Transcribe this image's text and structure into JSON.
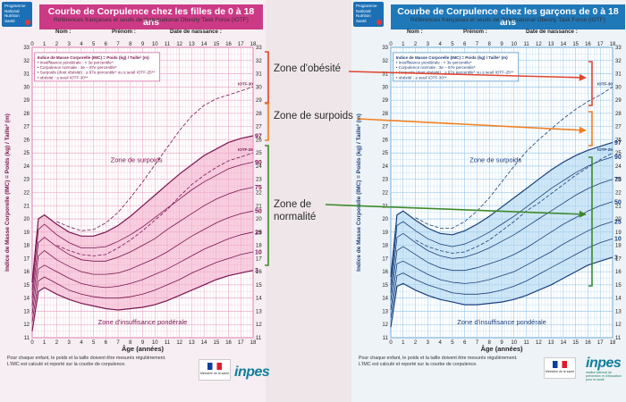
{
  "girls": {
    "program_badge": "Programme National Nutrition Santé",
    "title": "Courbe de Corpulence chez les filles de 0 à 18 ans",
    "subtitle": "Références françaises et seuils de l'International Obesity Task Force (IOTF)",
    "field_nom": "Nom :",
    "field_prenom": "Prénom :",
    "field_date": "Date de naissance :",
    "legend_lines": [
      "Indice de Masse Corporelle (IMC) = Poids (kg) / Taille² (m)",
      "• Insuffisance pondérale : < 3e percentile*",
      "• Corpulence normale : 3e – 97e percentile*",
      "• Surpoids (dont obésité) : ≥ 97e percentile* ou ≥ seuil IOTF-25**",
      "  • obésité : ≥ seuil IOTF-30**"
    ],
    "zone_surpoids": "Zone de surpoids",
    "zone_insuffisance": "Zone d'insuffisance pondérale",
    "footnote_1": "Pour chaque enfant, le poids et la taille doivent être mesurés régulièrement.",
    "footnote_2": "L'IMC est calculé et reporté sur la courbe de corpulence.",
    "colors": {
      "accent": "#cc3a86",
      "grid": "#e79cbd",
      "band": "#f2a7c6",
      "line": "#7a1450"
    }
  },
  "boys": {
    "program_badge": "Programme National Nutrition Santé",
    "title": "Courbe de Corpulence chez les garçons de 0 à 18 ans",
    "subtitle": "Références françaises et seuils de l'International Obesity Task Force (IOTF)",
    "field_nom": "Nom :",
    "field_prenom": "Prénom :",
    "field_date": "Date de naissance :",
    "legend_lines": [
      "Indice de Masse Corporelle (IMC) = Poids (kg) / Taille² (m)",
      "• Insuffisance pondérale : < 3e percentile*",
      "• Corpulence normale : 3e – 97e percentile*",
      "• Surpoids (dont obésité) : ≥ 97e percentile* ou ≥ seuil IOTF-25**",
      "  • obésité : ≥ seuil IOTF-30**"
    ],
    "zone_surpoids": "Zone de surpoids",
    "zone_insuffisance": "Zone d'insuffisance pondérale",
    "footnote_1": "Pour chaque enfant, le poids et la taille doivent être mesurés régulièrement.",
    "footnote_2": "L'IMC est calculé et reporté sur la courbe de corpulence.",
    "colors": {
      "accent": "#1f78b8",
      "grid": "#8cc0e6",
      "band": "#a8d3f0",
      "line": "#1a3f7a"
    }
  },
  "annotations": {
    "obesite": "Zone d'obésité",
    "surpoids": "Zone de surpoids",
    "normalite_1": "Zone de",
    "normalite_2": "normalité",
    "colors": {
      "obesite": "#e2452f",
      "surpoids": "#ef7f22",
      "normalite": "#3d8a2a"
    }
  },
  "ministry_label": "Ministère de la santé",
  "inpes_logo": "inpes",
  "inpes_sub": "institut national de prévention et d'éducation pour la santé",
  "chart_data": [
    {
      "type": "line",
      "title": "Courbe de Corpulence chez les filles de 0 à 18 ans",
      "xlabel": "Âge (années)",
      "ylabel": "Indice de Masse Corporelle (IMC) = Poids (kg) / Taille² (m)",
      "xlim": [
        0,
        18
      ],
      "ylim": [
        11,
        33
      ],
      "grid": true,
      "x": [
        0,
        0.5,
        1,
        2,
        3,
        4,
        5,
        6,
        7,
        8,
        9,
        10,
        11,
        12,
        13,
        14,
        15,
        16,
        17,
        18
      ],
      "series": [
        {
          "name": "3",
          "values": [
            11.5,
            14.5,
            14.8,
            14.3,
            13.9,
            13.6,
            13.4,
            13.2,
            13.1,
            13.2,
            13.3,
            13.5,
            13.8,
            14.2,
            14.6,
            15.0,
            15.4,
            15.7,
            15.9,
            16.1
          ]
        },
        {
          "name": "10",
          "values": [
            12.2,
            15.3,
            15.6,
            15.1,
            14.6,
            14.3,
            14.1,
            14.0,
            14.0,
            14.1,
            14.3,
            14.6,
            15.0,
            15.4,
            15.9,
            16.3,
            16.7,
            17.0,
            17.3,
            17.5
          ]
        },
        {
          "name": "25",
          "values": [
            12.8,
            16.2,
            16.5,
            16.0,
            15.5,
            15.1,
            14.9,
            14.8,
            14.9,
            15.1,
            15.4,
            15.8,
            16.2,
            16.7,
            17.2,
            17.7,
            18.1,
            18.5,
            18.8,
            19.0
          ]
        },
        {
          "name": "50",
          "values": [
            13.4,
            17.2,
            17.6,
            16.9,
            16.4,
            16.0,
            15.8,
            15.8,
            15.9,
            16.2,
            16.6,
            17.0,
            17.5,
            18.1,
            18.7,
            19.2,
            19.7,
            20.1,
            20.4,
            20.6
          ]
        },
        {
          "name": "75",
          "values": [
            14.0,
            18.2,
            18.6,
            17.9,
            17.3,
            16.9,
            16.8,
            16.8,
            17.1,
            17.5,
            18.0,
            18.5,
            19.2,
            19.8,
            20.4,
            21.0,
            21.5,
            21.9,
            22.2,
            22.4
          ]
        },
        {
          "name": "90",
          "values": [
            14.6,
            19.2,
            19.6,
            18.8,
            18.2,
            17.8,
            17.8,
            17.9,
            18.3,
            18.8,
            19.4,
            20.1,
            20.8,
            21.5,
            22.2,
            22.8,
            23.3,
            23.8,
            24.1,
            24.3
          ]
        },
        {
          "name": "97",
          "values": [
            15.2,
            20.0,
            20.3,
            19.6,
            19.0,
            18.7,
            18.7,
            19.0,
            19.5,
            20.2,
            21.0,
            21.8,
            22.6,
            23.4,
            24.1,
            24.8,
            25.3,
            25.8,
            26.1,
            26.3
          ]
        },
        {
          "name": "IOTF-25",
          "values": [
            null,
            null,
            null,
            18.0,
            17.6,
            17.3,
            17.2,
            17.3,
            17.8,
            18.4,
            19.1,
            19.9,
            20.7,
            21.7,
            22.6,
            23.3,
            23.9,
            24.4,
            24.7,
            25.0
          ]
        },
        {
          "name": "IOTF-30",
          "values": [
            null,
            null,
            null,
            19.8,
            19.4,
            19.1,
            19.2,
            19.7,
            20.5,
            21.6,
            22.8,
            24.1,
            25.4,
            26.7,
            27.8,
            28.6,
            29.1,
            29.4,
            29.7,
            30.0
          ]
        }
      ],
      "annotations": [
        "Zone de surpoids",
        "Zone d'insuffisance pondérale",
        "IOTF-30",
        "IOTF-25"
      ]
    },
    {
      "type": "line",
      "title": "Courbe de Corpulence chez les garçons de 0 à 18 ans",
      "xlabel": "Âge (années)",
      "ylabel": "Indice de Masse Corporelle (IMC) = Poids (kg) / Taille² (m)",
      "xlim": [
        0,
        18
      ],
      "ylim": [
        11,
        33
      ],
      "grid": true,
      "x": [
        0,
        0.5,
        1,
        2,
        3,
        4,
        5,
        6,
        7,
        8,
        9,
        10,
        11,
        12,
        13,
        14,
        15,
        16,
        17,
        18
      ],
      "series": [
        {
          "name": "3",
          "values": [
            11.8,
            14.9,
            15.1,
            14.6,
            14.2,
            13.9,
            13.7,
            13.5,
            13.5,
            13.6,
            13.7,
            13.9,
            14.2,
            14.6,
            15.0,
            15.5,
            16.0,
            16.5,
            16.8,
            17.1
          ]
        },
        {
          "name": "10",
          "values": [
            12.5,
            15.7,
            15.9,
            15.4,
            15.0,
            14.7,
            14.4,
            14.3,
            14.3,
            14.4,
            14.6,
            14.9,
            15.3,
            15.8,
            16.3,
            16.8,
            17.3,
            17.8,
            18.2,
            18.5
          ]
        },
        {
          "name": "25",
          "values": [
            13.1,
            16.6,
            16.8,
            16.3,
            15.8,
            15.4,
            15.2,
            15.1,
            15.2,
            15.4,
            15.7,
            16.0,
            16.5,
            17.0,
            17.5,
            18.1,
            18.6,
            19.1,
            19.5,
            19.8
          ]
        },
        {
          "name": "50",
          "values": [
            13.8,
            17.6,
            17.9,
            17.3,
            16.7,
            16.3,
            16.1,
            16.1,
            16.3,
            16.6,
            16.9,
            17.3,
            17.8,
            18.4,
            19.0,
            19.6,
            20.1,
            20.6,
            21.0,
            21.3
          ]
        },
        {
          "name": "75",
          "values": [
            14.4,
            18.6,
            18.9,
            18.2,
            17.6,
            17.2,
            17.0,
            17.1,
            17.4,
            17.8,
            18.3,
            18.8,
            19.4,
            20.0,
            20.6,
            21.2,
            21.8,
            22.3,
            22.7,
            23.0
          ]
        },
        {
          "name": "90",
          "values": [
            15.0,
            19.5,
            19.8,
            19.1,
            18.5,
            18.1,
            17.9,
            18.1,
            18.5,
            19.0,
            19.6,
            20.2,
            20.9,
            21.6,
            22.3,
            22.9,
            23.5,
            24.0,
            24.4,
            24.7
          ]
        },
        {
          "name": "97",
          "values": [
            15.6,
            20.3,
            20.6,
            19.9,
            19.3,
            18.9,
            18.8,
            19.1,
            19.6,
            20.2,
            20.9,
            21.6,
            22.3,
            23.0,
            23.7,
            24.3,
            24.8,
            25.2,
            25.5,
            25.8
          ]
        },
        {
          "name": "IOTF-25",
          "values": [
            null,
            null,
            null,
            18.4,
            17.9,
            17.6,
            17.4,
            17.5,
            17.9,
            18.4,
            19.1,
            19.8,
            20.6,
            21.2,
            21.9,
            22.6,
            23.3,
            23.9,
            24.5,
            25.0
          ]
        },
        {
          "name": "IOTF-30",
          "values": [
            null,
            null,
            null,
            20.1,
            19.6,
            19.3,
            19.3,
            19.8,
            20.6,
            21.6,
            22.8,
            24.0,
            25.1,
            26.0,
            26.8,
            27.6,
            28.3,
            28.9,
            29.4,
            30.0
          ]
        }
      ],
      "annotations": [
        "Zone de surpoids",
        "Zone d'insuffisance pondérale",
        "IOTF-30",
        "IOTF-25"
      ]
    }
  ]
}
